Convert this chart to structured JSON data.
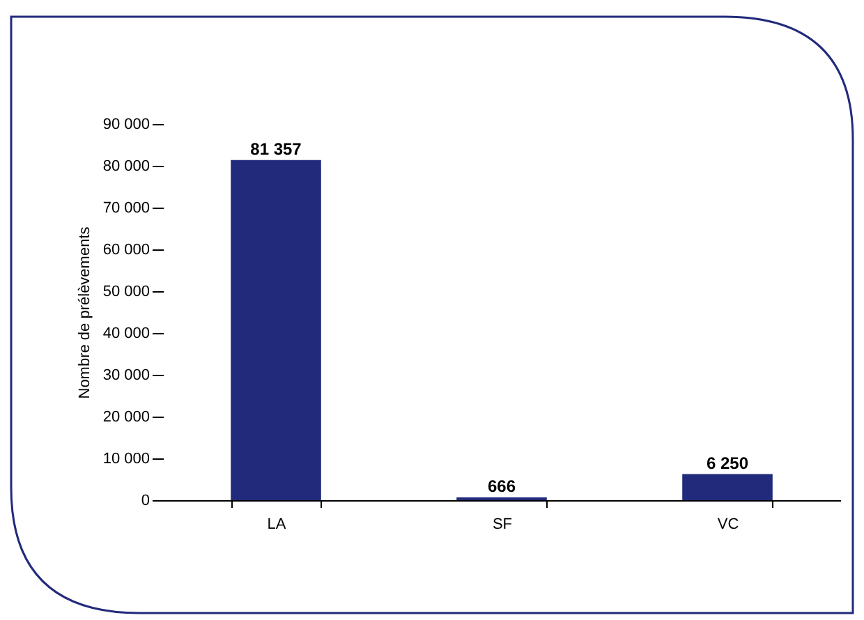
{
  "chart_data": {
    "type": "bar",
    "ylabel": "Nombre de prélèvements",
    "categories": [
      "LA",
      "SF",
      "VC"
    ],
    "values": [
      81357,
      666,
      6250
    ],
    "color": "#222a7c",
    "ylim": [
      0,
      90000
    ],
    "yticks": [
      0,
      10000,
      20000,
      30000,
      40000,
      50000,
      60000,
      70000,
      80000,
      90000
    ],
    "grid": false,
    "data_labels": true
  }
}
